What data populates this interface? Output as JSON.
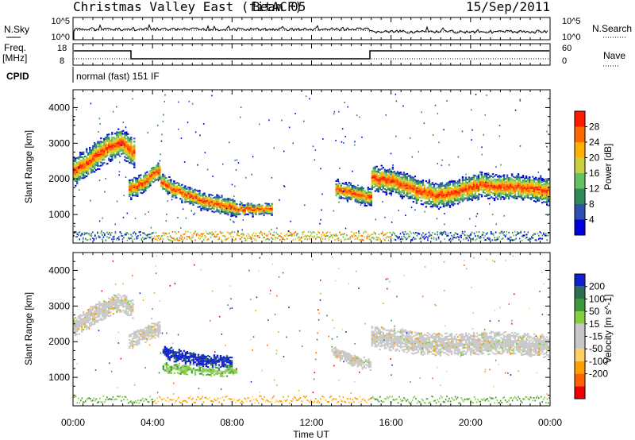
{
  "header": {
    "title": "Christmas Valley East (fitACF)",
    "beam": "Beam 05",
    "date": "15/Sep/2011"
  },
  "top_panels": {
    "nsky_label": "N.Sky",
    "nsky_ticks": [
      "10^5",
      "10^0"
    ],
    "nsearch_label": "N.Search",
    "nsearch_ticks": [
      "10^5",
      "10^0"
    ],
    "freq_label_1": "Freq.",
    "freq_label_2": "[MHz]",
    "freq_ticks": [
      "18",
      "8"
    ],
    "nave_label": "Nave",
    "nave_ticks": [
      "60",
      "0"
    ],
    "cpid_label": "CPID",
    "cpid_text": "normal (fast) 151 IF"
  },
  "colors": {
    "power_scale": [
      "#0000dd",
      "#3050b0",
      "#2e8b57",
      "#66c060",
      "#c8d040",
      "#ffb000",
      "#ff6a00",
      "#ff1a00"
    ],
    "velocity_scale": [
      "#1020d0",
      "#2e6e50",
      "#3c9a3c",
      "#86d040",
      "#c8c8c8",
      "#c8c8c8",
      "#ffd060",
      "#ffa000",
      "#ff6000",
      "#ee0000"
    ]
  },
  "chart_data": [
    {
      "type": "heatmap",
      "name": "power",
      "ylabel": "Slant Range [km]",
      "yticks": [
        1000,
        2000,
        3000,
        4000
      ],
      "ylim": [
        200,
        4500
      ],
      "colorbar_label": "Power [dB]",
      "colorbar_ticks": [
        4,
        8,
        12,
        16,
        20,
        24,
        28
      ],
      "colorbar_range": [
        0,
        32
      ]
    },
    {
      "type": "heatmap",
      "name": "velocity",
      "ylabel": "Slant Range [km]",
      "yticks": [
        1000,
        2000,
        3000,
        4000
      ],
      "ylim": [
        200,
        4500
      ],
      "colorbar_label": "Velocity [m s^-1]",
      "colorbar_ticks": [
        200,
        100,
        50,
        15,
        -15,
        -50,
        -100,
        -200
      ]
    }
  ],
  "xaxis": {
    "label": "Time UT",
    "ticks": [
      "00:00",
      "04:00",
      "08:00",
      "12:00",
      "16:00",
      "20:00",
      "00:00"
    ],
    "hours": [
      0,
      4,
      8,
      12,
      16,
      20,
      24
    ]
  },
  "echo_bands": [
    {
      "t0": 0.0,
      "t1": 3.1,
      "r": [
        2200,
        2450,
        2800,
        3000,
        2700
      ],
      "w": 260
    },
    {
      "t0": 2.8,
      "t1": 4.4,
      "r": [
        1700,
        1750,
        1900,
        2100,
        2250
      ],
      "w": 180
    },
    {
      "t0": 4.4,
      "t1": 8.2,
      "r": [
        1900,
        1600,
        1400,
        1250,
        1150
      ],
      "w": 160
    },
    {
      "t0": 8.2,
      "t1": 10.0,
      "r": [
        1130,
        1120,
        1110
      ],
      "w": 110
    },
    {
      "t0": 13.2,
      "t1": 15.0,
      "r": [
        1700,
        1600,
        1500,
        1450
      ],
      "w": 160
    },
    {
      "t0": 15.0,
      "t1": 24.0,
      "r": [
        2000,
        1900,
        1650,
        1500,
        1650,
        1800,
        1750,
        1700,
        1650
      ],
      "w": 230
    }
  ],
  "velocity_bands": [
    {
      "t0": 0.0,
      "t1": 3.0,
      "r": [
        2400,
        2650,
        2900,
        3100,
        2900
      ],
      "w": 260,
      "v": "gray"
    },
    {
      "t0": 2.8,
      "t1": 4.4,
      "r": [
        2000,
        2100,
        2200,
        2300,
        2400
      ],
      "w": 220,
      "v": "gray"
    },
    {
      "t0": 4.5,
      "t1": 8.0,
      "r": [
        1700,
        1550,
        1450,
        1400
      ],
      "w": 180,
      "v": "blue"
    },
    {
      "t0": 4.5,
      "t1": 8.2,
      "r": [
        1250,
        1200,
        1150,
        1150
      ],
      "w": 120,
      "v": "green"
    },
    {
      "t0": 13.0,
      "t1": 15.0,
      "r": [
        1700,
        1550,
        1400,
        1350
      ],
      "w": 150,
      "v": "gray"
    },
    {
      "t0": 15.0,
      "t1": 24.0,
      "r": [
        2100,
        2050,
        1950,
        1900,
        1900,
        1950,
        1950,
        1900,
        1850
      ],
      "w": 300,
      "v": "gray"
    }
  ]
}
